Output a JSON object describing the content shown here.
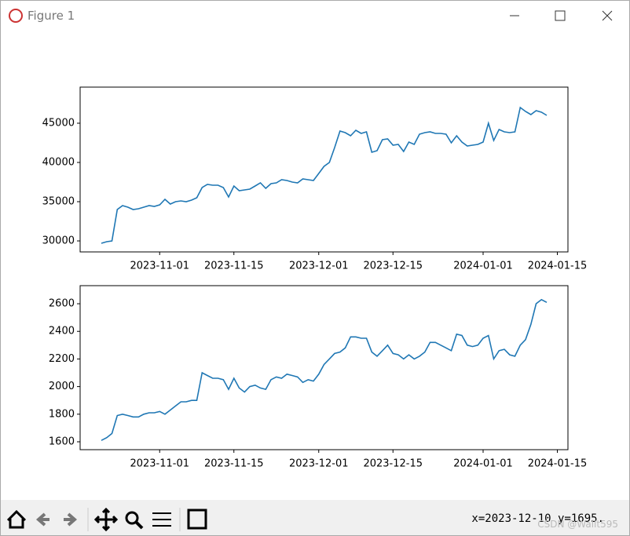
{
  "window": {
    "title": "Figure 1"
  },
  "status": "x=2023-12-10 y=1695.",
  "watermark": "CSDN @Wallt595",
  "chart_data": [
    {
      "type": "line",
      "x": [
        "2023-10-21",
        "2023-10-22",
        "2023-10-23",
        "2023-10-24",
        "2023-10-25",
        "2023-10-26",
        "2023-10-27",
        "2023-10-28",
        "2023-10-29",
        "2023-10-30",
        "2023-10-31",
        "2023-11-01",
        "2023-11-02",
        "2023-11-03",
        "2023-11-04",
        "2023-11-05",
        "2023-11-06",
        "2023-11-07",
        "2023-11-08",
        "2023-11-09",
        "2023-11-10",
        "2023-11-11",
        "2023-11-12",
        "2023-11-13",
        "2023-11-14",
        "2023-11-15",
        "2023-11-16",
        "2023-11-17",
        "2023-11-18",
        "2023-11-19",
        "2023-11-20",
        "2023-11-21",
        "2023-11-22",
        "2023-11-23",
        "2023-11-24",
        "2023-11-25",
        "2023-11-26",
        "2023-11-27",
        "2023-11-28",
        "2023-11-29",
        "2023-11-30",
        "2023-12-01",
        "2023-12-02",
        "2023-12-03",
        "2023-12-04",
        "2023-12-05",
        "2023-12-06",
        "2023-12-07",
        "2023-12-08",
        "2023-12-09",
        "2023-12-10",
        "2023-12-11",
        "2023-12-12",
        "2023-12-13",
        "2023-12-14",
        "2023-12-15",
        "2023-12-16",
        "2023-12-17",
        "2023-12-18",
        "2023-12-19",
        "2023-12-20",
        "2023-12-21",
        "2023-12-22",
        "2023-12-23",
        "2023-12-24",
        "2023-12-25",
        "2023-12-26",
        "2023-12-27",
        "2023-12-28",
        "2023-12-29",
        "2023-12-30",
        "2023-12-31",
        "2024-01-01",
        "2024-01-02",
        "2024-01-03",
        "2024-01-04",
        "2024-01-05",
        "2024-01-06",
        "2024-01-07",
        "2024-01-08",
        "2024-01-09",
        "2024-01-10",
        "2024-01-11",
        "2024-01-12",
        "2024-01-13"
      ],
      "series": [
        {
          "color": "#1f77b4",
          "values": [
            29700,
            29900,
            30000,
            34000,
            34500,
            34300,
            34000,
            34100,
            34300,
            34500,
            34400,
            34600,
            35300,
            34700,
            35000,
            35100,
            35000,
            35200,
            35500,
            36800,
            37200,
            37100,
            37100,
            36800,
            35600,
            37000,
            36400,
            36500,
            36600,
            37000,
            37400,
            36700,
            37300,
            37400,
            37800,
            37700,
            37500,
            37400,
            37900,
            37800,
            37700,
            38600,
            39500,
            40000,
            41900,
            44000,
            43800,
            43400,
            44100,
            43700,
            43900,
            41300,
            41500,
            42900,
            43000,
            42200,
            42300,
            41400,
            42600,
            42300,
            43600,
            43800,
            43900,
            43700,
            43700,
            43600,
            42500,
            43400,
            42600,
            42100,
            42200,
            42300,
            42600,
            45000,
            42800,
            44200,
            43900,
            43800,
            43900,
            47000,
            46500,
            46100,
            46600,
            46400,
            46000
          ]
        }
      ],
      "xlim": [
        "2023-10-17",
        "2024-01-17"
      ],
      "xticks": [
        "2023-11-01",
        "2023-11-15",
        "2023-12-01",
        "2023-12-15",
        "2024-01-01",
        "2024-01-15"
      ],
      "ylim": [
        28600,
        49600
      ],
      "yticks": [
        30000,
        35000,
        40000,
        45000
      ]
    },
    {
      "type": "line",
      "x": [
        "2023-10-21",
        "2023-10-22",
        "2023-10-23",
        "2023-10-24",
        "2023-10-25",
        "2023-10-26",
        "2023-10-27",
        "2023-10-28",
        "2023-10-29",
        "2023-10-30",
        "2023-10-31",
        "2023-11-01",
        "2023-11-02",
        "2023-11-03",
        "2023-11-04",
        "2023-11-05",
        "2023-11-06",
        "2023-11-07",
        "2023-11-08",
        "2023-11-09",
        "2023-11-10",
        "2023-11-11",
        "2023-11-12",
        "2023-11-13",
        "2023-11-14",
        "2023-11-15",
        "2023-11-16",
        "2023-11-17",
        "2023-11-18",
        "2023-11-19",
        "2023-11-20",
        "2023-11-21",
        "2023-11-22",
        "2023-11-23",
        "2023-11-24",
        "2023-11-25",
        "2023-11-26",
        "2023-11-27",
        "2023-11-28",
        "2023-11-29",
        "2023-11-30",
        "2023-12-01",
        "2023-12-02",
        "2023-12-03",
        "2023-12-04",
        "2023-12-05",
        "2023-12-06",
        "2023-12-07",
        "2023-12-08",
        "2023-12-09",
        "2023-12-10",
        "2023-12-11",
        "2023-12-12",
        "2023-12-13",
        "2023-12-14",
        "2023-12-15",
        "2023-12-16",
        "2023-12-17",
        "2023-12-18",
        "2023-12-19",
        "2023-12-20",
        "2023-12-21",
        "2023-12-22",
        "2023-12-23",
        "2023-12-24",
        "2023-12-25",
        "2023-12-26",
        "2023-12-27",
        "2023-12-28",
        "2023-12-29",
        "2023-12-30",
        "2023-12-31",
        "2024-01-01",
        "2024-01-02",
        "2024-01-03",
        "2024-01-04",
        "2024-01-05",
        "2024-01-06",
        "2024-01-07",
        "2024-01-08",
        "2024-01-09",
        "2024-01-10",
        "2024-01-11",
        "2024-01-12",
        "2024-01-13"
      ],
      "series": [
        {
          "color": "#1f77b4",
          "values": [
            1610,
            1630,
            1660,
            1790,
            1800,
            1790,
            1780,
            1780,
            1800,
            1810,
            1810,
            1820,
            1800,
            1830,
            1860,
            1890,
            1890,
            1900,
            1900,
            2100,
            2080,
            2060,
            2060,
            2050,
            1980,
            2060,
            1990,
            1960,
            2000,
            2010,
            1990,
            1980,
            2050,
            2070,
            2060,
            2090,
            2080,
            2070,
            2030,
            2050,
            2040,
            2090,
            2160,
            2200,
            2240,
            2250,
            2280,
            2360,
            2360,
            2350,
            2350,
            2250,
            2220,
            2260,
            2300,
            2240,
            2230,
            2200,
            2230,
            2200,
            2220,
            2250,
            2320,
            2320,
            2300,
            2280,
            2260,
            2380,
            2370,
            2300,
            2290,
            2300,
            2350,
            2370,
            2200,
            2260,
            2270,
            2230,
            2220,
            2300,
            2340,
            2450,
            2600,
            2630,
            2610
          ]
        }
      ],
      "xlim": [
        "2023-10-17",
        "2024-01-17"
      ],
      "xticks": [
        "2023-11-01",
        "2023-11-15",
        "2023-12-01",
        "2023-12-15",
        "2024-01-01",
        "2024-01-15"
      ],
      "ylim": [
        1543,
        2731
      ],
      "yticks": [
        1600,
        1800,
        2000,
        2200,
        2400,
        2600
      ]
    }
  ]
}
